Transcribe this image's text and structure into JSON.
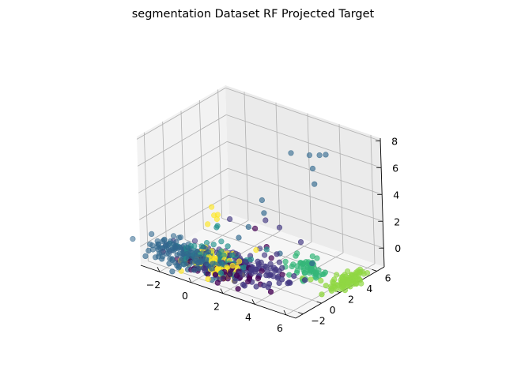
{
  "chart_data": {
    "type": "scatter",
    "projection": "3d",
    "title": "segmentation Dataset RF Projected Target",
    "xlabel": "",
    "ylabel": "",
    "zlabel": "",
    "grid": true,
    "legend": "none",
    "colormap": "viridis",
    "xlim": [
      -3.2,
      6.6
    ],
    "ylim": [
      -2.8,
      6.8
    ],
    "zlim": [
      -1.4,
      8.2
    ],
    "x_ticks": [
      "−2",
      "0",
      "2",
      "4",
      "6"
    ],
    "y_ticks": [
      "−2",
      "0",
      "2",
      "4",
      "6"
    ],
    "z_ticks": [
      "0",
      "2",
      "4",
      "6",
      "8"
    ],
    "colors": {
      "c0": "#440154",
      "c1": "#443983",
      "c2": "#31688e",
      "c3": "#21918c",
      "c4": "#35b779",
      "c5": "#90d743",
      "c6": "#fde725",
      "pane": "#f2f2f2",
      "grid": "#b0b0b0"
    },
    "series": [
      {
        "class": 0,
        "color": "#440154",
        "cx": 0.8,
        "cy": -1.2,
        "cz": -0.6,
        "sx": 1.4,
        "sy": 0.7,
        "sz": 0.25,
        "n": 80,
        "seed": 11,
        "extra": [
          [
            2.2,
            0.5,
            2.2
          ],
          [
            2.6,
            1.0,
            0.8
          ],
          [
            3.0,
            0.8,
            0.2
          ],
          [
            0.4,
            -1.6,
            -0.8
          ]
        ]
      },
      {
        "class": 1,
        "color": "#443983",
        "cx": 1.6,
        "cy": -0.4,
        "cz": -0.5,
        "sx": 1.6,
        "sy": 0.8,
        "sz": 0.3,
        "n": 140,
        "seed": 23,
        "extra": [
          [
            2.7,
            0.8,
            2.9
          ],
          [
            3.1,
            1.6,
            2.2
          ],
          [
            4.2,
            2.0,
            1.4
          ],
          [
            3.6,
            0.4,
            0.9
          ],
          [
            1.2,
            -0.5,
            2.9
          ]
        ]
      },
      {
        "class": 2,
        "color": "#31688e",
        "cx": -0.8,
        "cy": -1.6,
        "cz": -0.3,
        "sx": 1.2,
        "sy": 0.6,
        "sz": 0.35,
        "n": 160,
        "seed": 37,
        "extra": [
          [
            3.5,
            2.4,
            7.6
          ],
          [
            4.2,
            3.2,
            7.4
          ],
          [
            4.6,
            3.6,
            7.4
          ],
          [
            5.0,
            3.6,
            7.6
          ],
          [
            4.5,
            3.0,
            6.6
          ],
          [
            4.7,
            2.8,
            5.6
          ],
          [
            2.4,
            1.0,
            4.2
          ],
          [
            2.8,
            0.5,
            3.6
          ],
          [
            2.2,
            -0.2,
            2.6
          ],
          [
            1.8,
            -0.6,
            1.8
          ],
          [
            3.5,
            0.9,
            0.7
          ],
          [
            5.0,
            1.8,
            0.2
          ]
        ]
      },
      {
        "class": 3,
        "color": "#21918c",
        "cx": 0.3,
        "cy": -0.8,
        "cz": -0.2,
        "sx": 1.1,
        "sy": 0.6,
        "sz": 0.4,
        "n": 60,
        "seed": 41,
        "extra": [
          [
            0.7,
            -1.0,
            2.4
          ],
          [
            0.4,
            -0.6,
            2.0
          ],
          [
            1.2,
            -0.8,
            1.0
          ],
          [
            2.6,
            1.0,
            0.6
          ]
        ]
      },
      {
        "class": 4,
        "color": "#35b779",
        "cx": 4.6,
        "cy": 2.0,
        "cz": -0.4,
        "sx": 0.6,
        "sy": 0.45,
        "sz": 0.3,
        "n": 55,
        "seed": 53,
        "extra": [
          [
            4.2,
            1.4,
            0.6
          ],
          [
            4.8,
            2.2,
            0.5
          ],
          [
            3.9,
            0.8,
            0.3
          ]
        ]
      },
      {
        "class": 5,
        "color": "#90d743",
        "cx": 6.2,
        "cy": 3.2,
        "cz": -1.2,
        "sx": 0.28,
        "sy": 0.85,
        "sz": 0.12,
        "n": 85,
        "seed": 67,
        "extra": [
          [
            4.6,
            1.4,
            -0.9
          ],
          [
            5.0,
            1.6,
            -0.9
          ],
          [
            5.4,
            2.0,
            -1.0
          ]
        ]
      },
      {
        "class": 6,
        "color": "#fde725",
        "cx": 0.4,
        "cy": -1.0,
        "cz": -0.5,
        "sx": 0.9,
        "sy": 0.5,
        "sz": 0.35,
        "n": 110,
        "seed": 79,
        "extra": [
          [
            0.3,
            -0.9,
            3.6
          ],
          [
            0.5,
            -1.0,
            3.1
          ],
          [
            0.2,
            -1.2,
            2.4
          ],
          [
            0.5,
            -0.7,
            2.7
          ],
          [
            0.8,
            -1.1,
            3.3
          ],
          [
            2.4,
            0.2,
            0.8
          ]
        ]
      }
    ]
  }
}
